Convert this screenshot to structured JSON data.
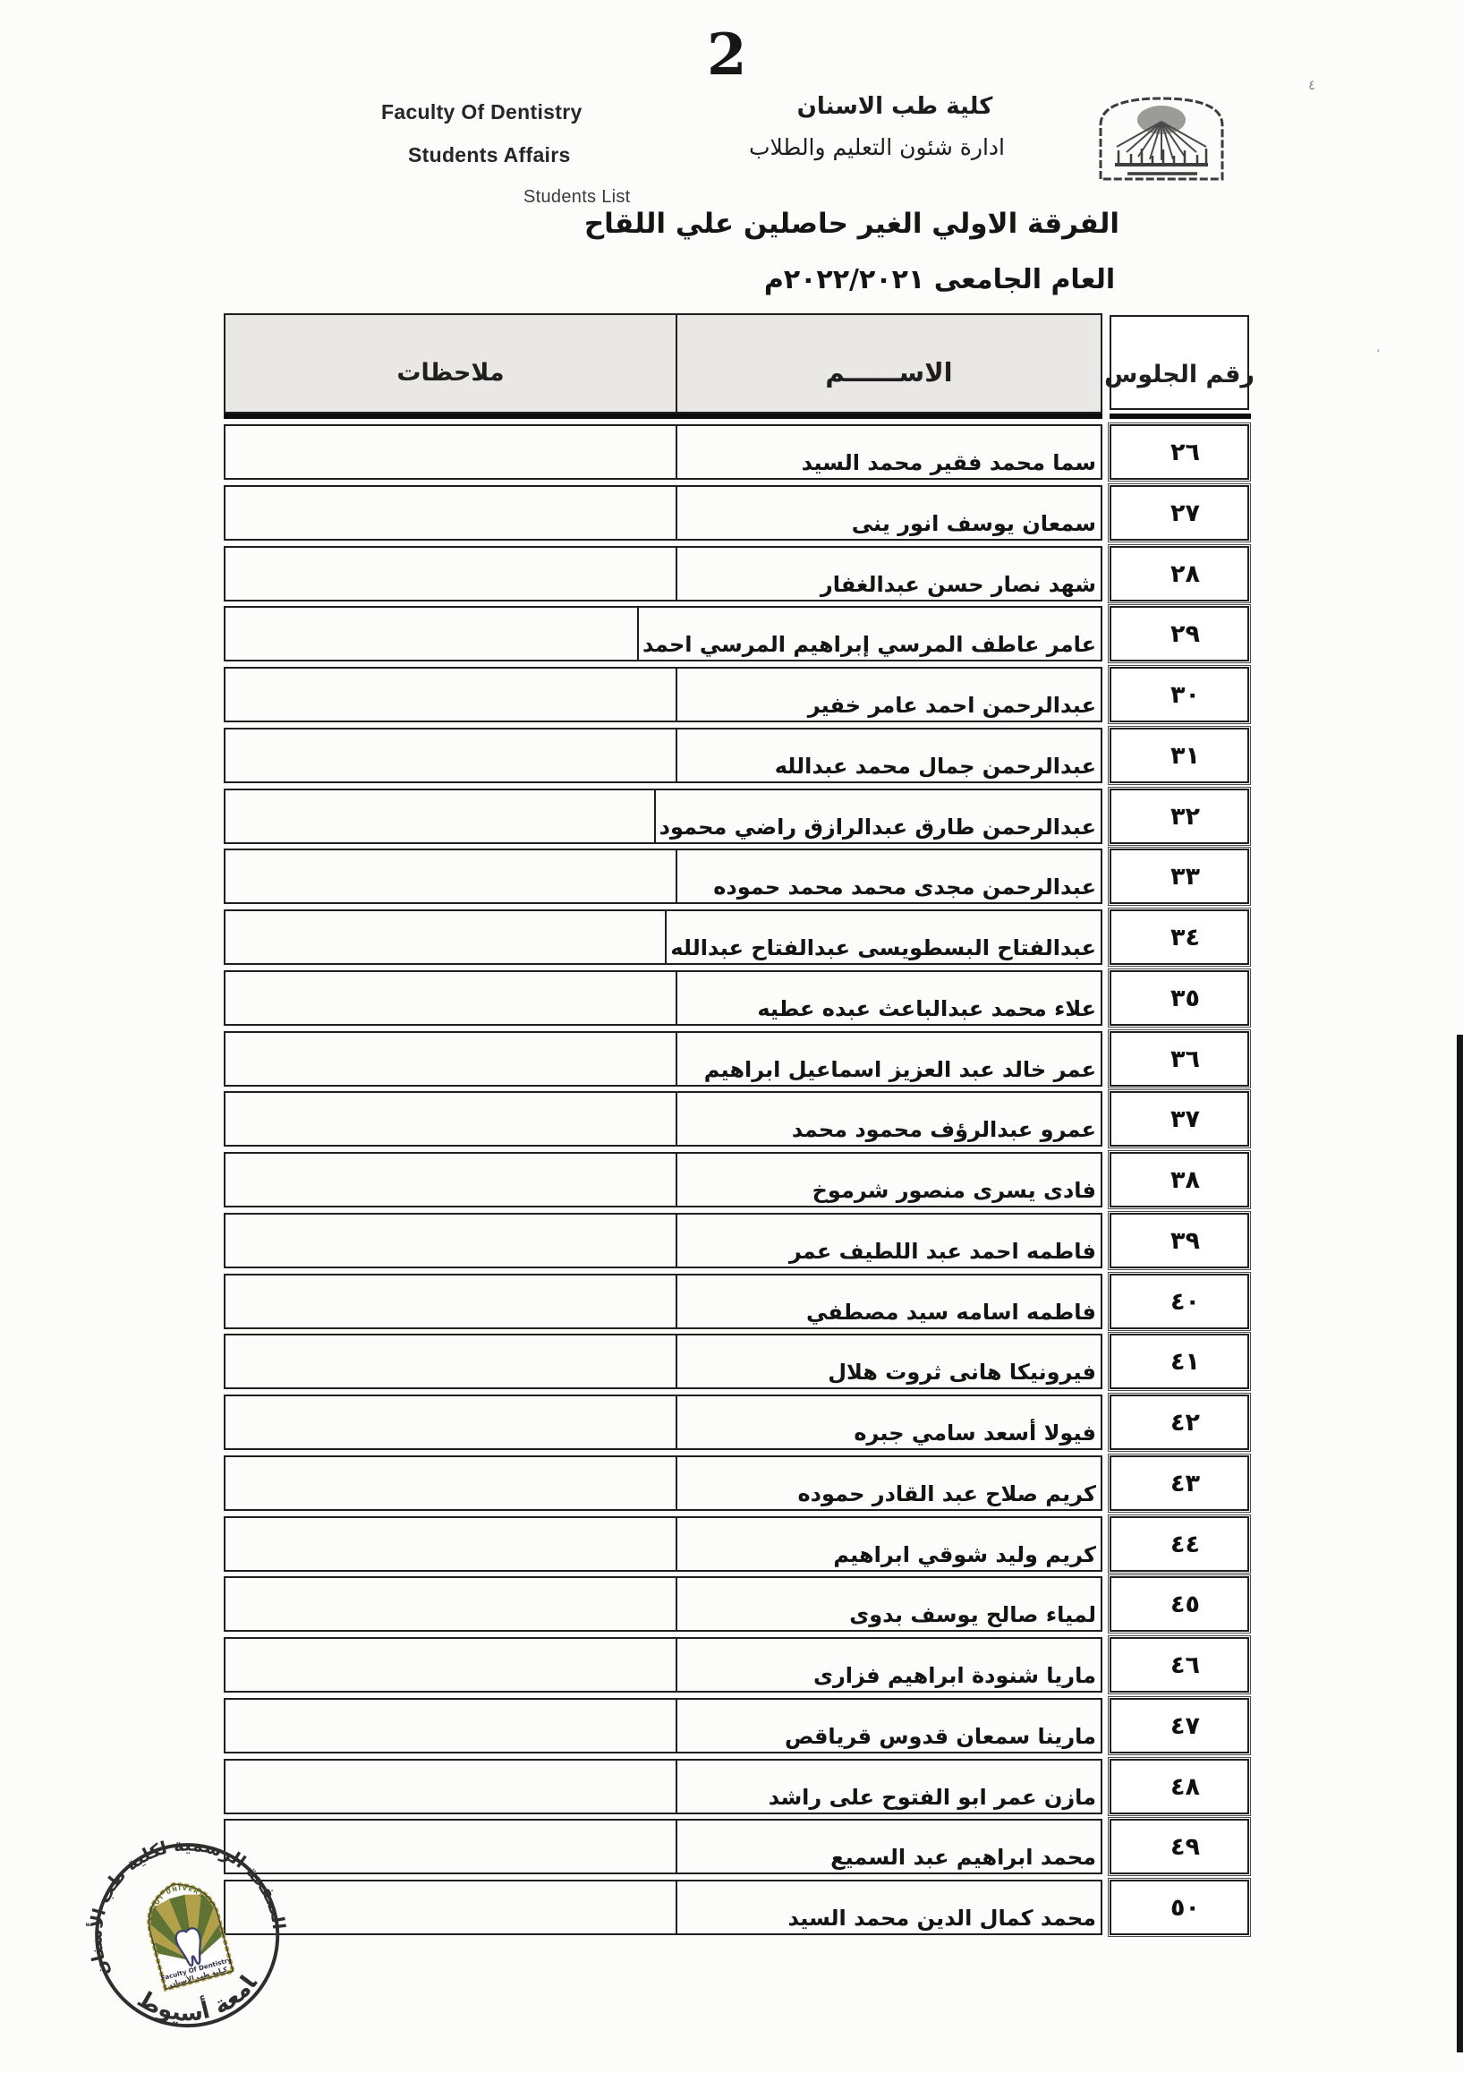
{
  "page": {
    "number": "2"
  },
  "header": {
    "en": {
      "line1": "Faculty Of Dentistry",
      "line2": "Students Affairs",
      "line3": "Students List"
    },
    "ar": {
      "line1": "كلية طب الاسنان",
      "line2": "ادارة شئون التعليم والطلاب"
    },
    "logo": {
      "icon": "assiut-university-arch-logo"
    }
  },
  "title": {
    "line1": "الفرقة الاولي  الغير حاصلين علي اللقاح",
    "line2": "العام الجامعى ٢٠٢٢/٢٠٢١م"
  },
  "table": {
    "columns": {
      "seat": "رقم الجلوس",
      "name": "الاســــــم",
      "notes": "ملاحظات"
    },
    "rows": [
      {
        "seat": "٢٦",
        "name": "سما محمد فقير محمد السيد",
        "notes": ""
      },
      {
        "seat": "٢٧",
        "name": "سمعان يوسف انور ينى",
        "notes": ""
      },
      {
        "seat": "٢٨",
        "name": "شهد نصار حسن عبدالغفار",
        "notes": ""
      },
      {
        "seat": "٢٩",
        "name": "عامر عاطف المرسي إبراهيم المرسي احمد",
        "notes": ""
      },
      {
        "seat": "٣٠",
        "name": "عبدالرحمن احمد عامر خفير",
        "notes": ""
      },
      {
        "seat": "٣١",
        "name": "عبدالرحمن جمال محمد عبدالله",
        "notes": ""
      },
      {
        "seat": "٣٢",
        "name": "عبدالرحمن طارق عبدالرازق راضي محمود",
        "notes": ""
      },
      {
        "seat": "٣٣",
        "name": "عبدالرحمن مجدى محمد محمد حموده",
        "notes": ""
      },
      {
        "seat": "٣٤",
        "name": "عبدالفتاح البسطويسى عبدالفتاح عبدالله",
        "notes": ""
      },
      {
        "seat": "٣٥",
        "name": "علاء محمد عبدالباعث عبده عطيه",
        "notes": ""
      },
      {
        "seat": "٣٦",
        "name": "عمر خالد عبد العزيز اسماعيل ابراهيم",
        "notes": ""
      },
      {
        "seat": "٣٧",
        "name": "عمرو عبدالرؤف محمود محمد",
        "notes": ""
      },
      {
        "seat": "٣٨",
        "name": "فادى يسرى منصور شرموخ",
        "notes": ""
      },
      {
        "seat": "٣٩",
        "name": "فاطمه احمد عبد اللطيف عمر",
        "notes": ""
      },
      {
        "seat": "٤٠",
        "name": "فاطمه اسامه سيد مصطفي",
        "notes": ""
      },
      {
        "seat": "٤١",
        "name": "فيرونيكا هانى ثروت هلال",
        "notes": ""
      },
      {
        "seat": "٤٢",
        "name": "فيولا أسعد سامي جبره",
        "notes": ""
      },
      {
        "seat": "٤٣",
        "name": "كريم صلاح عبد القادر حموده",
        "notes": ""
      },
      {
        "seat": "٤٤",
        "name": "كريم وليد شوقي ابراهيم",
        "notes": ""
      },
      {
        "seat": "٤٥",
        "name": "لمياء صالح يوسف بدوى",
        "notes": ""
      },
      {
        "seat": "٤٦",
        "name": "ماريا شنودة ابراهيم فزارى",
        "notes": ""
      },
      {
        "seat": "٤٧",
        "name": "مارينا سمعان قدوس قرياقص",
        "notes": ""
      },
      {
        "seat": "٤٨",
        "name": "مازن عمر ابو الفتوح على راشد",
        "notes": ""
      },
      {
        "seat": "٤٩",
        "name": "محمد ابراهيم عبد السميع",
        "notes": ""
      },
      {
        "seat": "٥٠",
        "name": "محمد كمال الدين محمد السيد",
        "notes": ""
      }
    ]
  },
  "stamp": {
    "outer_text_top": "الصفحة الرسمية لكلية طب الأسنان",
    "outer_text_bottom": "جامعة أسيوط",
    "inner_arc_text": "ASSIUT UNIVERSITY",
    "inner_line1": "Faculty Of Dentistry",
    "inner_line2": "كـلية طب الأسنان"
  },
  "artifacts": {
    "speck1": "٤",
    "speck2": "،"
  },
  "colors": {
    "ink": "#1f1f1f",
    "heavy": "#0d0d0d",
    "band": "#e9e8e4",
    "page": "#fcfcfb",
    "stamp-ink": "#2e2e2e",
    "green": "#5e7334",
    "gold": "#b3a14a",
    "tooth": "#3f3f6e",
    "bar": "#161616"
  }
}
